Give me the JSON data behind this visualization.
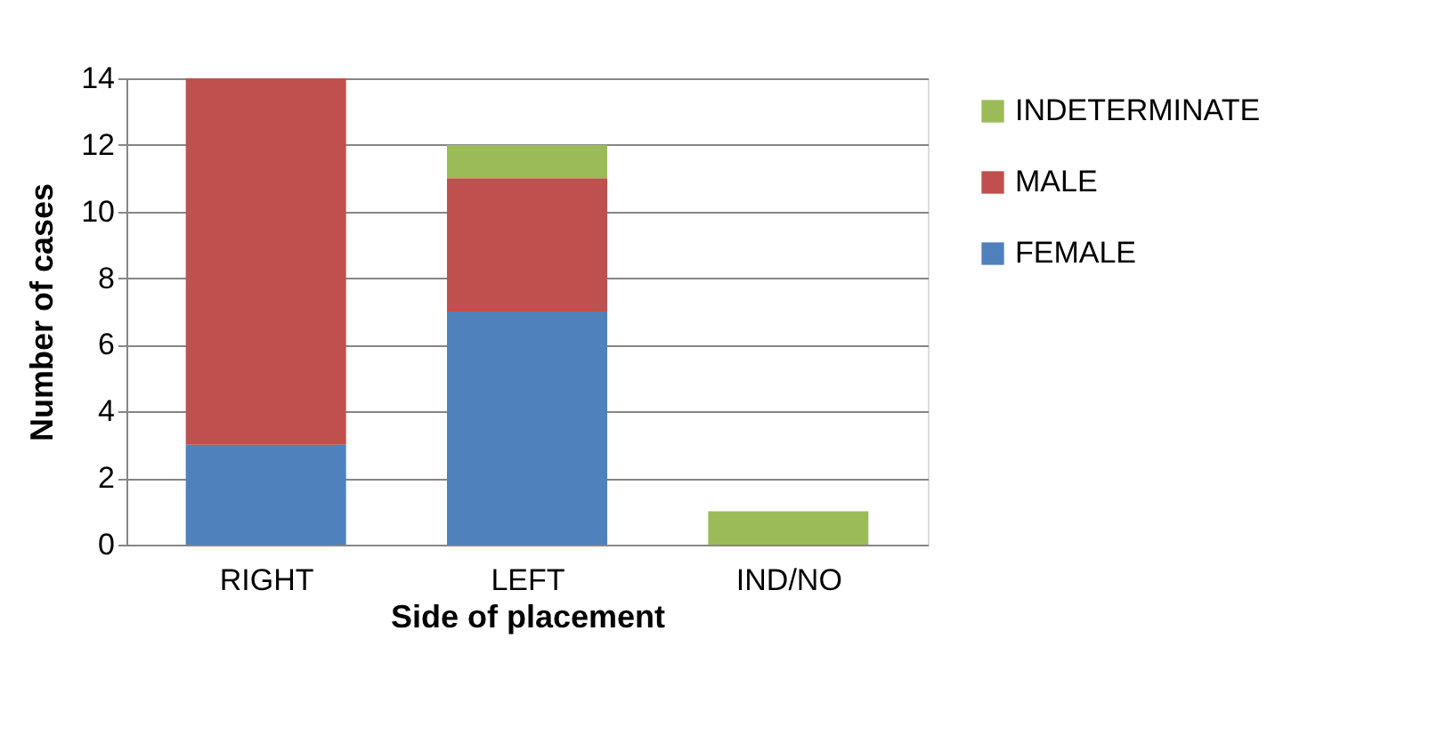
{
  "chart_data": {
    "type": "bar",
    "stacked": true,
    "xlabel": "Side of placement",
    "ylabel": "Number of cases",
    "categories": [
      "RIGHT",
      "LEFT",
      "IND/NO"
    ],
    "series": [
      {
        "name": "FEMALE",
        "color": "#4f81bd",
        "values": [
          3,
          7,
          0
        ]
      },
      {
        "name": "MALE",
        "color": "#c0504d",
        "values": [
          11,
          4,
          0
        ]
      },
      {
        "name": "INDETERMINATE",
        "color": "#9bbb59",
        "values": [
          0,
          1,
          1
        ]
      }
    ],
    "ylim": [
      0,
      14
    ],
    "yticks": [
      0,
      2,
      4,
      6,
      8,
      10,
      12,
      14
    ],
    "grid": "y",
    "legend": "right"
  }
}
